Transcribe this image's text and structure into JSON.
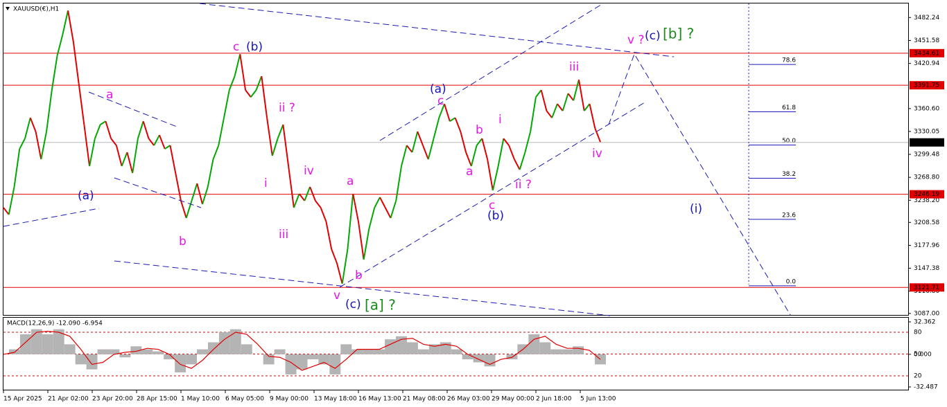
{
  "chart_data": [
    {
      "type": "price",
      "title": "XAUUSD(€),H1",
      "x_labels": [
        "15 Apr 2025",
        "21 Apr 02:00",
        "23 Apr 20:00",
        "28 Apr 15:00",
        "1 May 10:00",
        "6 May 05:00",
        "9 May 00:00",
        "13 May 18:00",
        "16 May 13:00",
        "21 May 08:00",
        "26 May 03:00",
        "29 May 00:00",
        "2 Jun 18:00",
        "5 Jun 13:00"
      ],
      "ylim": [
        3085,
        3501
      ],
      "yticks": [
        3482.24,
        3451.58,
        3420.94,
        {
          "value": 3360.6,
          "label": "3360.60"
        },
        3330.05,
        3299.48,
        {
          "value": 3268.8,
          "label": "3268.80"
        },
        {
          "value": 3238.2,
          "label": "3238.20"
        },
        3208.58,
        3177.96,
        3147.38,
        {
          "value": 3116.8,
          "label": "3116.80"
        },
        {
          "value": 3087,
          "label": "3087.00"
        }
      ],
      "values": [
        3228.3,
        3219.1,
        3256.0,
        3306.8,
        3320.6,
        3348.3,
        3329.9,
        3292.9,
        3329.9,
        3385.3,
        3431.4,
        3459.3,
        3491.5,
        3449.9,
        3394.5,
        3339.1,
        3283.7,
        3320.6,
        3339.1,
        3343.7,
        3320.6,
        3311.4,
        3283.7,
        3302.2,
        3274.5,
        3320.6,
        3343.7,
        3320.6,
        3311.4,
        3325.2,
        3306.8,
        3311.4,
        3274.5,
        3237.5,
        3214.5,
        3237.5,
        3260.6,
        3232.9,
        3256.0,
        3292.9,
        3311.4,
        3348.3,
        3385.3,
        3403.8,
        3433.3,
        3385.3,
        3376.0,
        3385.3,
        3403.8,
        3348.3,
        3297.6,
        3320.6,
        3339.1,
        3283.7,
        3228.3,
        3246.8,
        3237.5,
        3256.0,
        3237.5,
        3228.3,
        3209.8,
        3172.9,
        3154.4,
        3126.7,
        3172.9,
        3246.8,
        3209.8,
        3159.0,
        3200.6,
        3228.3,
        3242.1,
        3228.3,
        3214.5,
        3237.5,
        3283.7,
        3311.4,
        3302.2,
        3329.9,
        3311.4,
        3292.9,
        3320.6,
        3348.3,
        3366.8,
        3343.7,
        3348.3,
        3329.9,
        3302.2,
        3283.7,
        3311.4,
        3320.6,
        3292.9,
        3251.4,
        3283.7,
        3320.6,
        3311.4,
        3292.9,
        3279.1,
        3302.2,
        3329.9,
        3376.0,
        3385.3,
        3357.6,
        3348.3,
        3366.8,
        3357.6,
        3380.7,
        3371.4,
        3399.1,
        3357.6,
        3366.8,
        3334.5,
        3316.0
      ],
      "up_color": "#00a800",
      "down_color": "#e00000",
      "levels": [
        3434.61,
        3391.75,
        3246.19,
        3121.71
      ],
      "level_color": "#e00000",
      "price": 3315.43,
      "fib": {
        "low": 3124,
        "high": 3500,
        "levels": [
          78.6,
          61.8,
          {
            "value": 50,
            "label": "50.0"
          },
          38.2,
          23.6,
          {
            "value": 0,
            "label": "0.0"
          }
        ]
      },
      "annotations": [
        "(a)",
        "a",
        "b",
        "c",
        "(b)",
        "ii ?",
        "i",
        "iii",
        "iv",
        "v",
        "(c)",
        "[a] ?",
        "a",
        "b",
        "(a)",
        "c",
        "b",
        "a",
        "c",
        "(b)",
        "i",
        "ii ?",
        "iii",
        "iv",
        "v ?",
        "(c)",
        "[b] ?",
        "(i)"
      ]
    },
    {
      "type": "macd",
      "title": "MACD(12,26,9) -12.090 -6.954",
      "ylim": [
        -32.487,
        32.362
      ],
      "yticks": [
        32.362,
        {
          "value": 0,
          "label": "0.000"
        },
        -32.487
      ],
      "histogram": [
        0,
        5,
        20,
        25,
        20,
        25,
        10,
        -10,
        -15,
        5,
        5,
        -3,
        8,
        5,
        3,
        -5,
        -18,
        -10,
        5,
        12,
        22,
        25,
        10,
        0,
        -10,
        5,
        -20,
        -15,
        -5,
        -10,
        -20,
        10,
        5,
        5,
        5,
        15,
        18,
        12,
        5,
        10,
        12,
        5,
        -5,
        -8,
        -12,
        0,
        -5,
        10,
        20,
        12,
        5,
        5,
        8,
        0,
        -10
      ],
      "signal": [
        0,
        2,
        12,
        22,
        23,
        22,
        18,
        5,
        -10,
        -8,
        0,
        2,
        3,
        6,
        5,
        0,
        -10,
        -14,
        -6,
        5,
        15,
        22,
        20,
        10,
        -2,
        -3,
        -8,
        -16,
        -12,
        -8,
        -14,
        -5,
        5,
        5,
        5,
        10,
        15,
        16,
        10,
        8,
        10,
        8,
        0,
        -5,
        -10,
        -5,
        -3,
        5,
        15,
        18,
        10,
        6,
        6,
        4,
        -5
      ],
      "histogram_color": "#b4b4b4",
      "signal_color": "#e00000",
      "levels": [
        80,
        50,
        20
      ],
      "level_lim": [
        0,
        100
      ]
    }
  ]
}
